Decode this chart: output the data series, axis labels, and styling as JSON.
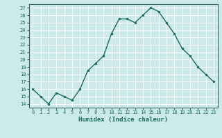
{
  "x": [
    0,
    1,
    2,
    3,
    4,
    5,
    6,
    7,
    8,
    9,
    10,
    11,
    12,
    13,
    14,
    15,
    16,
    17,
    18,
    19,
    20,
    21,
    22,
    23
  ],
  "y": [
    16.0,
    15.0,
    14.0,
    15.5,
    15.0,
    14.5,
    16.0,
    18.5,
    19.5,
    20.5,
    23.5,
    25.5,
    25.5,
    25.0,
    26.0,
    27.0,
    26.5,
    25.0,
    23.5,
    21.5,
    20.5,
    19.0,
    18.0,
    17.0
  ],
  "line_color": "#1a6b5a",
  "marker": "o",
  "marker_size": 2.0,
  "linewidth": 1.0,
  "xlabel": "Humidex (Indice chaleur)",
  "xlim": [
    -0.5,
    23.5
  ],
  "ylim": [
    13.5,
    27.5
  ],
  "xticks": [
    0,
    1,
    2,
    3,
    4,
    5,
    6,
    7,
    8,
    9,
    10,
    11,
    12,
    13,
    14,
    15,
    16,
    17,
    18,
    19,
    20,
    21,
    22,
    23
  ],
  "xtick_labels": [
    "0",
    "1",
    "2",
    "3",
    "4",
    "5",
    "6",
    "7",
    "8",
    "9",
    "10",
    "11",
    "12",
    "13",
    "14",
    "15",
    "16",
    "17",
    "18",
    "19",
    "20",
    "21",
    "22",
    "23"
  ],
  "yticks": [
    14,
    15,
    16,
    17,
    18,
    19,
    20,
    21,
    22,
    23,
    24,
    25,
    26,
    27
  ],
  "bg_color": "#cceaea",
  "grid_color": "#ffffff",
  "tick_fontsize": 5.0,
  "xlabel_fontsize": 6.5,
  "spine_color": "#336666"
}
